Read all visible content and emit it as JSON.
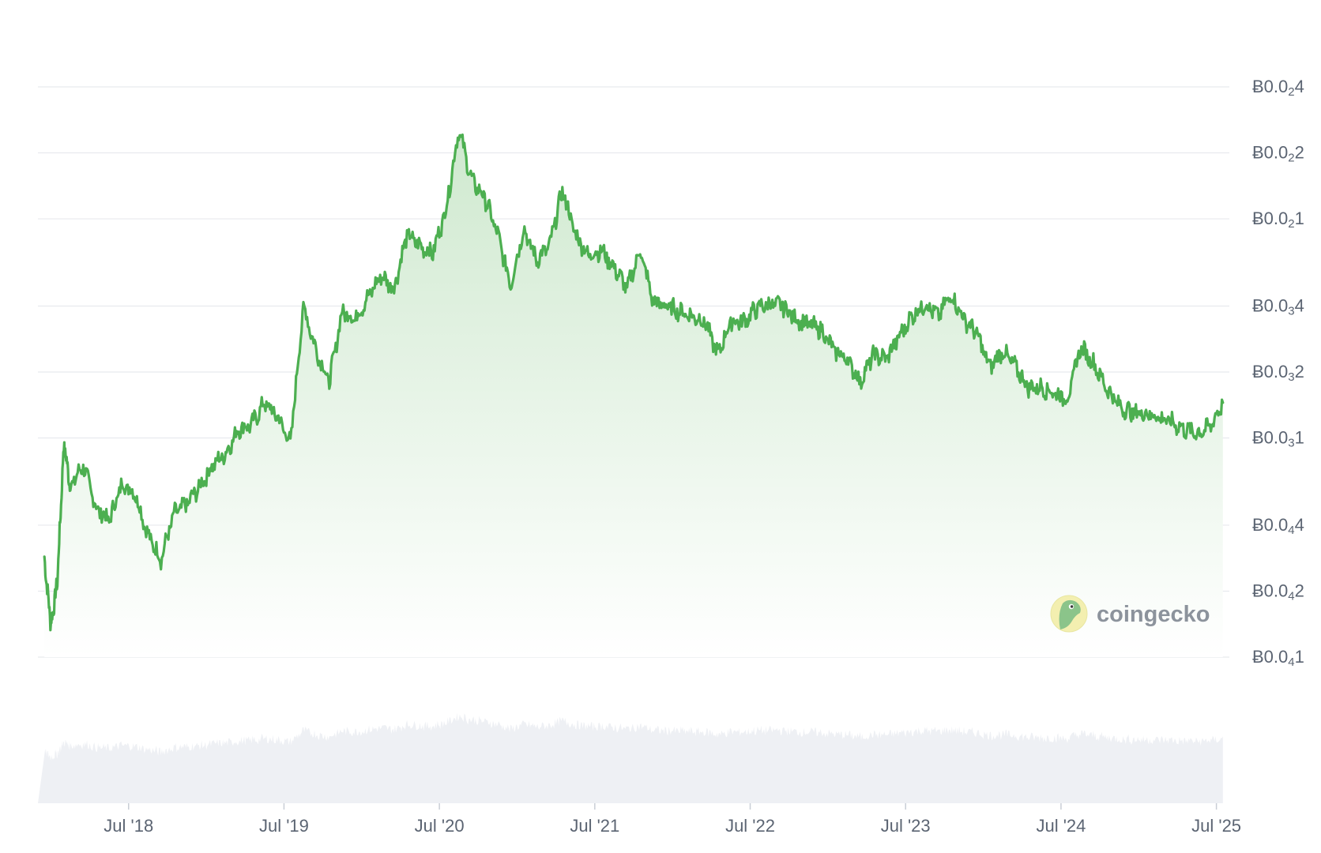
{
  "watermark": {
    "text": "coingecko"
  },
  "colors": {
    "line": "#4caf50",
    "area_top": "#cfe9cf",
    "area_bottom": "#ffffff",
    "grid": "#e8eaee",
    "volume": "#eef0f4",
    "tick_text": "#5b6472"
  },
  "chart_data": {
    "type": "area",
    "scale": "log",
    "x_ticks": [
      "Jul '18",
      "Jul '19",
      "Jul '20",
      "Jul '21",
      "Jul '22",
      "Jul '23",
      "Jul '24",
      "Jul '25"
    ],
    "y_ticks": [
      {
        "label": "Ƀ0.0",
        "sub": "2",
        "digit": "4",
        "value": 0.0004
      },
      {
        "label": "Ƀ0.0",
        "sub": "2",
        "digit": "2",
        "value": 0.0002
      },
      {
        "label": "Ƀ0.0",
        "sub": "2",
        "digit": "1",
        "value": 0.0001
      },
      {
        "label": "Ƀ0.0",
        "sub": "3",
        "digit": "4",
        "value": 4e-05
      },
      {
        "label": "Ƀ0.0",
        "sub": "3",
        "digit": "2",
        "value": 2e-05
      },
      {
        "label": "Ƀ0.0",
        "sub": "3",
        "digit": "1",
        "value": 1e-05
      },
      {
        "label": "Ƀ0.0",
        "sub": "4",
        "digit": "4",
        "value": 4e-06
      },
      {
        "label": "Ƀ0.0",
        "sub": "4",
        "digit": "2",
        "value": 2e-06
      },
      {
        "label": "Ƀ0.0",
        "sub": "4",
        "digit": "1",
        "value": 1e-06
      }
    ],
    "ylim": [
      1e-06,
      0.0004
    ],
    "xlim": [
      "2017-12",
      "2025-08"
    ],
    "grid": true,
    "legend": "none",
    "series": [
      {
        "values": [
          [
            "2017-12",
            2.8e-06
          ],
          [
            "2018-01",
            1.4e-06
          ],
          [
            "2018-01",
            2.2e-06
          ],
          [
            "2018-02",
            9.5e-06
          ],
          [
            "2018-02",
            6e-06
          ],
          [
            "2018-03",
            7.5e-06
          ],
          [
            "2018-04",
            4.8e-06
          ],
          [
            "2018-05",
            4.2e-06
          ],
          [
            "2018-06",
            6.2e-06
          ],
          [
            "2018-07",
            5.6e-06
          ],
          [
            "2018-08",
            3.6e-06
          ],
          [
            "2018-09",
            2.8e-06
          ],
          [
            "2018-10",
            4.5e-06
          ],
          [
            "2018-11",
            5e-06
          ],
          [
            "2018-12",
            6e-06
          ],
          [
            "2019-01",
            7.5e-06
          ],
          [
            "2019-02",
            8.5e-06
          ],
          [
            "2019-03",
            1.1e-05
          ],
          [
            "2019-04",
            1.15e-05
          ],
          [
            "2019-05",
            1.45e-05
          ],
          [
            "2019-06",
            1.25e-05
          ],
          [
            "2019-07",
            9.5e-06
          ],
          [
            "2019-08",
            4e-05
          ],
          [
            "2019-09",
            2.5e-05
          ],
          [
            "2019-10",
            1.8e-05
          ],
          [
            "2019-11",
            3.8e-05
          ],
          [
            "2019-12",
            3.5e-05
          ],
          [
            "2020-01",
            4.4e-05
          ],
          [
            "2020-02",
            5.5e-05
          ],
          [
            "2020-03",
            4.8e-05
          ],
          [
            "2020-04",
            8.5e-05
          ],
          [
            "2020-05",
            7.5e-05
          ],
          [
            "2020-06",
            7e-05
          ],
          [
            "2020-07",
            0.00011
          ],
          [
            "2020-08",
            0.000255
          ],
          [
            "2020-09",
            0.00015
          ],
          [
            "2020-10",
            0.000125
          ],
          [
            "2020-11",
            8.5e-05
          ],
          [
            "2020-12",
            5e-05
          ],
          [
            "2021-01",
            9e-05
          ],
          [
            "2021-02",
            6.5e-05
          ],
          [
            "2021-03",
            7.5e-05
          ],
          [
            "2021-04",
            0.000135
          ],
          [
            "2021-05",
            8.5e-05
          ],
          [
            "2021-06",
            6.8e-05
          ],
          [
            "2021-07",
            7.2e-05
          ],
          [
            "2021-08",
            6e-05
          ],
          [
            "2021-09",
            4.8e-05
          ],
          [
            "2021-10",
            7.2e-05
          ],
          [
            "2021-11",
            4.2e-05
          ],
          [
            "2021-12",
            4e-05
          ],
          [
            "2022-01",
            3.8e-05
          ],
          [
            "2022-02",
            3.6e-05
          ],
          [
            "2022-03",
            3.4e-05
          ],
          [
            "2022-04",
            2.4e-05
          ],
          [
            "2022-05",
            3.4e-05
          ],
          [
            "2022-06",
            3.4e-05
          ],
          [
            "2022-07",
            3.9e-05
          ],
          [
            "2022-08",
            4.1e-05
          ],
          [
            "2022-09",
            4e-05
          ],
          [
            "2022-10",
            3.5e-05
          ],
          [
            "2022-11",
            3.3e-05
          ],
          [
            "2022-12",
            3.1e-05
          ],
          [
            "2023-01",
            2.5e-05
          ],
          [
            "2023-02",
            2.3e-05
          ],
          [
            "2023-03",
            1.8e-05
          ],
          [
            "2023-04",
            2.4e-05
          ],
          [
            "2023-05",
            2.3e-05
          ],
          [
            "2023-06",
            2.9e-05
          ],
          [
            "2023-07",
            3.6e-05
          ],
          [
            "2023-08",
            4.1e-05
          ],
          [
            "2023-09",
            3.6e-05
          ],
          [
            "2023-10",
            4.5e-05
          ],
          [
            "2023-11",
            3.5e-05
          ],
          [
            "2023-12",
            3e-05
          ],
          [
            "2024-01",
            2.1e-05
          ],
          [
            "2024-02",
            2.5e-05
          ],
          [
            "2024-03",
            2.1e-05
          ],
          [
            "2024-04",
            1.7e-05
          ],
          [
            "2024-05",
            1.7e-05
          ],
          [
            "2024-06",
            1.6e-05
          ],
          [
            "2024-07",
            1.5e-05
          ],
          [
            "2024-08",
            2.6e-05
          ],
          [
            "2024-09",
            2.2e-05
          ],
          [
            "2024-10",
            1.7e-05
          ],
          [
            "2024-11",
            1.4e-05
          ],
          [
            "2024-12",
            1.3e-05
          ],
          [
            "2025-01",
            1.3e-05
          ],
          [
            "2025-02",
            1.25e-05
          ],
          [
            "2025-03",
            1.18e-05
          ],
          [
            "2025-04",
            1.1e-05
          ],
          [
            "2025-05",
            1.05e-05
          ],
          [
            "2025-06",
            1.12e-05
          ],
          [
            "2025-07",
            1.45e-05
          ]
        ]
      }
    ]
  }
}
